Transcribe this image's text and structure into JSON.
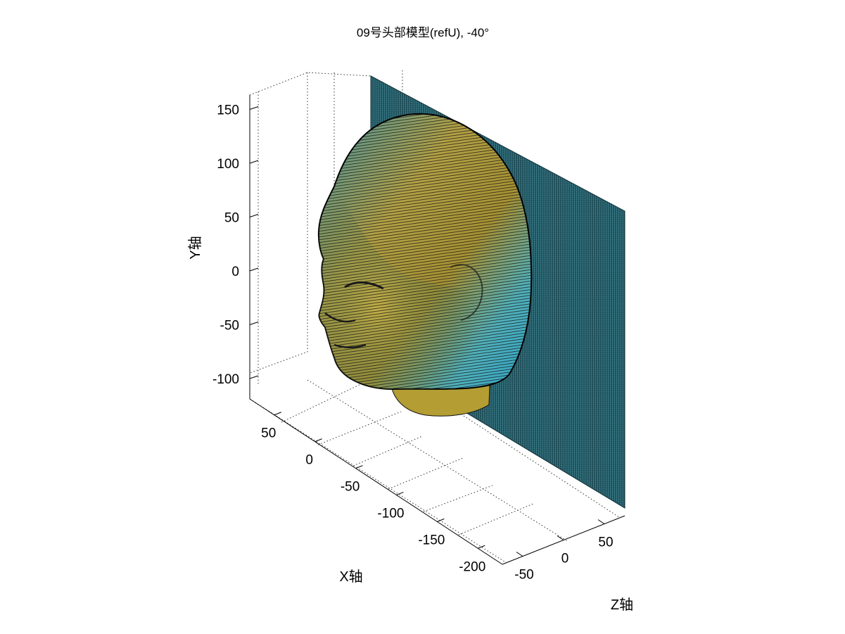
{
  "chart_data": {
    "type": "surface3d",
    "title": "09号头部模型(refU), -40°",
    "xlabel": "X轴",
    "ylabel": "Y轴",
    "zlabel": "Z轴",
    "xlim": [
      -230,
      80
    ],
    "ylim": [
      -120,
      165
    ],
    "zlim": [
      -75,
      75
    ],
    "x_ticks": [
      50,
      0,
      -50,
      -100,
      -150,
      -200
    ],
    "y_ticks": [
      150,
      100,
      50,
      0,
      -50,
      -100
    ],
    "z_ticks": [
      -50,
      0,
      50
    ],
    "x_tick_labels": [
      "50",
      "0",
      "-50",
      "-100",
      "-150",
      "-200"
    ],
    "y_tick_labels": [
      "150",
      "100",
      "50",
      "0",
      "-50",
      "-100"
    ],
    "z_tick_labels": [
      "-50",
      "0",
      "50"
    ],
    "view_azimuth_deg": -40,
    "grid": true,
    "series": [
      {
        "name": "head surface",
        "colormap": "yellow-green-cyan",
        "color_low": "#b8a12a",
        "color_high": "#35c8e6"
      },
      {
        "name": "reference plane",
        "colormap": "teal",
        "color_low": "#1b4b55",
        "color_high": "#5fb9c9"
      }
    ]
  }
}
